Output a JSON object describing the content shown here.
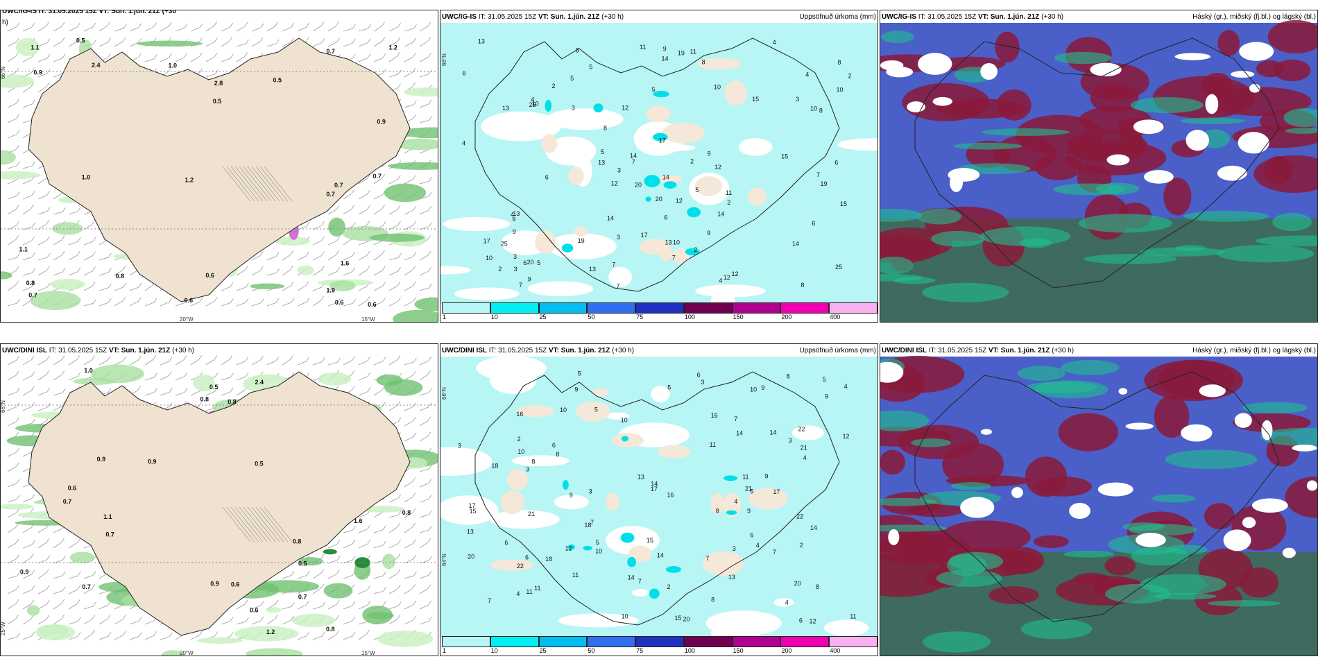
{
  "panels": [
    {
      "id": "p1",
      "model": "",
      "it": "",
      "vt": "",
      "right": ""
    },
    {
      "id": "p2",
      "model": "UWC/IG-IS",
      "it": " IT: 31.05.2025 15Z ",
      "vt": "VT: Sun. 1.jún. 21Z",
      "lead": " (+30 h)",
      "right": "Uppsöfnuð úrkoma (mm)"
    },
    {
      "id": "p3",
      "model": "UWC/IG-IS",
      "it": " IT: 31.05.2025 15Z ",
      "vt": "VT: Sun. 1.jún. 21Z",
      "lead": " (+30 h)",
      "right": "Háský (gr.), miðský (fj.bl.) og lágský (bl.)"
    },
    {
      "id": "p4",
      "model": "UWC/DINI ISL",
      "it": " IT: 31.05.2025 15Z ",
      "vt": "VT: Sun. 1.jún. 21Z",
      "lead": " (+30 h)",
      "right": ""
    },
    {
      "id": "p5",
      "model": "UWC/DINI ISL",
      "it": " IT: 31.05.2025 15Z ",
      "vt": "VT: Sun. 1.jún. 21Z",
      "lead": " (+30 h)",
      "right": "Uppsöfnuð úrkoma (mm)"
    },
    {
      "id": "p6",
      "model": "UWC/DINI ISL",
      "it": " IT: 31.05.2025 15Z ",
      "vt": "VT: Sun. 1.jún. 21Z",
      "lead": " (+30 h)",
      "right": "Háský (gr.), miðský (fj.bl.) og lágský (bl.)"
    }
  ],
  "p1_header_partial": "UWC/IG-IS IT: 31.05.2025 15Z VT: Sun. 1.jún. 21Z (+30",
  "p1_header_wrap": "h)",
  "axis": {
    "lat_66": "66°N",
    "lat_64": "64°N",
    "lon_25": "25°W",
    "lon_20": "20°W",
    "lon_15": "15°W"
  },
  "colorbar": {
    "ticks": [
      "1",
      "10",
      "25",
      "50",
      "75",
      "100",
      "150",
      "200",
      "400"
    ],
    "colors": [
      "#b8f5f5",
      "#00f0f0",
      "#00bff0",
      "#3070f0",
      "#2030c0",
      "#700050",
      "#b00090",
      "#f000b0",
      "#f8b0f0"
    ]
  },
  "precip_labels_top_left": [
    "0.6",
    "0.7",
    "0.7",
    "1.6",
    "0.6",
    "2.8",
    "0.5",
    "0.9",
    "1.2",
    "1.0",
    "1.1",
    "0.6",
    "0.5",
    "1.9",
    "0.8",
    "0.7",
    "0.5",
    "0.7",
    "0.6",
    "1.2",
    "0.9",
    "1.0",
    "0.8",
    "0.7",
    "1.1",
    "2.4"
  ],
  "precip_labels_bottom_left": [
    "0.7",
    "0.5",
    "0.8",
    "1.6",
    "0.8",
    "0.7",
    "0.5",
    "0.6",
    "1.2",
    "0.9",
    "0.8",
    "0.6",
    "0.5",
    "2.4",
    "0.7",
    "0.8",
    "1.0",
    "0.9",
    "0.8",
    "0.7",
    "1.1",
    "0.9",
    "0.6",
    "0.9"
  ],
  "accum_labels_top": [
    "2",
    "3",
    "5",
    "4",
    "6",
    "7",
    "8",
    "9",
    "10",
    "11",
    "12",
    "13",
    "14",
    "15",
    "17",
    "20",
    "25",
    "19",
    "2",
    "3",
    "4",
    "5",
    "6",
    "7",
    "8",
    "9",
    "10",
    "12",
    "13",
    "14"
  ],
  "accum_labels_bottom": [
    "3",
    "4",
    "5",
    "6",
    "7",
    "8",
    "9",
    "10",
    "11",
    "12",
    "13",
    "14",
    "15",
    "16",
    "17",
    "18",
    "20",
    "21",
    "22",
    "2",
    "3",
    "4",
    "5",
    "6",
    "7",
    "8",
    "9",
    "10",
    "11",
    "14"
  ]
}
